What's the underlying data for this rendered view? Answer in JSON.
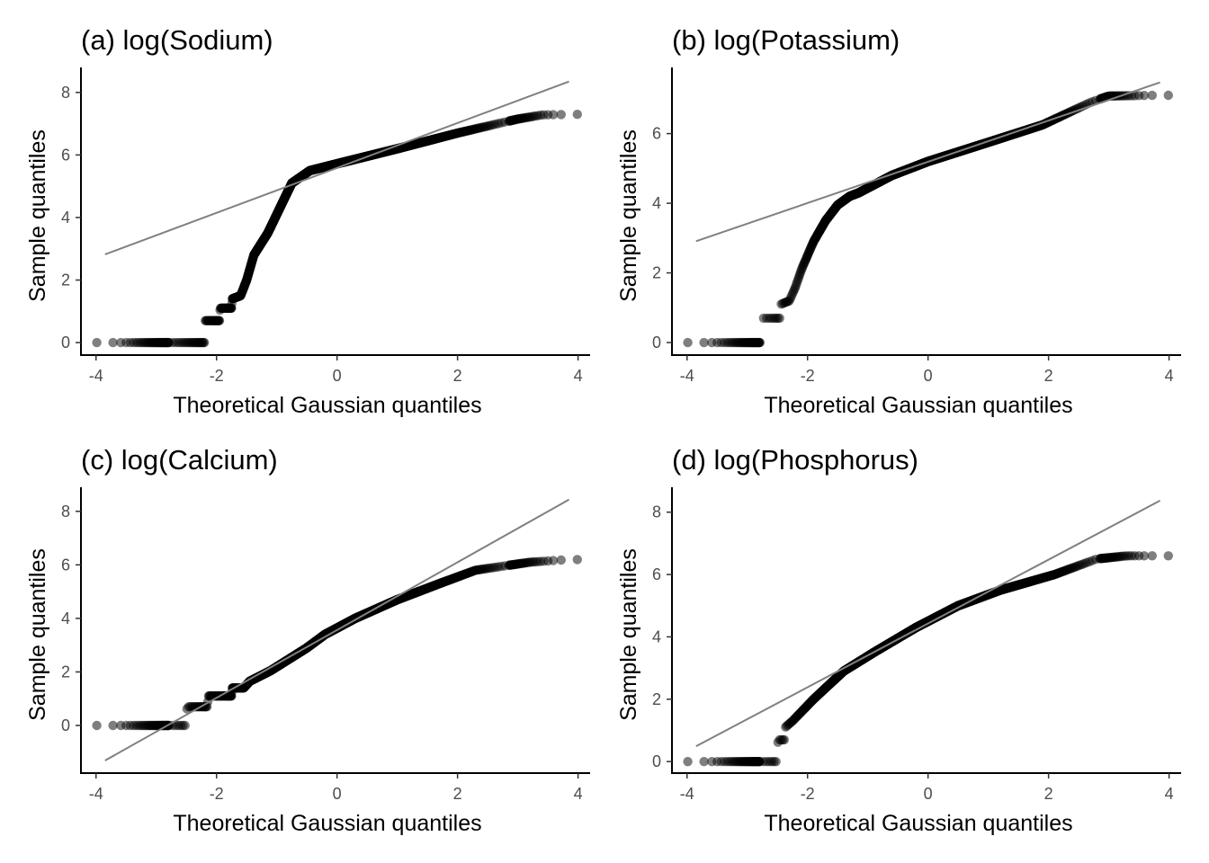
{
  "chart_data": [
    {
      "type": "scatter",
      "title": "(a) log(Sodium)",
      "xlabel": "Theoretical Gaussian quantiles",
      "ylabel": "Sample quantiles",
      "xlim": [
        -4.25,
        4.2
      ],
      "ylim": [
        -0.4,
        8.8
      ],
      "xticks": [
        -4,
        -2,
        0,
        2,
        4
      ],
      "yticks": [
        0,
        2,
        4,
        6,
        8
      ],
      "reference_line": [
        [
          -3.85,
          2.82
        ],
        [
          3.85,
          8.35
        ]
      ],
      "sample_curve": [
        [
          -3.85,
          0
        ],
        [
          -2.2,
          0
        ],
        [
          -2.19,
          0.7
        ],
        [
          -1.95,
          0.7
        ],
        [
          -1.94,
          1.1
        ],
        [
          -1.75,
          1.1
        ],
        [
          -1.74,
          1.4
        ],
        [
          -1.6,
          1.5
        ],
        [
          -1.5,
          2.0
        ],
        [
          -1.38,
          2.8
        ],
        [
          -1.15,
          3.5
        ],
        [
          -0.9,
          4.5
        ],
        [
          -0.75,
          5.1
        ],
        [
          -0.45,
          5.5
        ],
        [
          0,
          5.72
        ],
        [
          1,
          6.2
        ],
        [
          2,
          6.7
        ],
        [
          3,
          7.15
        ],
        [
          3.4,
          7.28
        ],
        [
          3.85,
          7.3
        ]
      ]
    },
    {
      "type": "scatter",
      "title": "(b) log(Potassium)",
      "xlabel": "Theoretical Gaussian quantiles",
      "ylabel": "Sample quantiles",
      "xlim": [
        -4.25,
        4.2
      ],
      "ylim": [
        -0.36,
        7.9
      ],
      "xticks": [
        -4,
        -2,
        0,
        2,
        4
      ],
      "yticks": [
        0,
        2,
        4,
        6
      ],
      "reference_line": [
        [
          -3.85,
          2.91
        ],
        [
          3.85,
          7.47
        ]
      ],
      "sample_curve": [
        [
          -3.85,
          0
        ],
        [
          -2.75,
          0
        ],
        [
          -2.74,
          0.7
        ],
        [
          -2.45,
          0.7
        ],
        [
          -2.44,
          1.1
        ],
        [
          -2.3,
          1.2
        ],
        [
          -2.2,
          1.6
        ],
        [
          -2.1,
          2.1
        ],
        [
          -1.9,
          2.9
        ],
        [
          -1.7,
          3.5
        ],
        [
          -1.5,
          3.95
        ],
        [
          -1.3,
          4.2
        ],
        [
          -1.15,
          4.3
        ],
        [
          -0.6,
          4.8
        ],
        [
          0,
          5.2
        ],
        [
          1,
          5.75
        ],
        [
          1.9,
          6.25
        ],
        [
          2.7,
          6.9
        ],
        [
          3.0,
          7.08
        ],
        [
          3.85,
          7.1
        ]
      ]
    },
    {
      "type": "scatter",
      "title": "(c) log(Calcium)",
      "xlabel": "Theoretical Gaussian quantiles",
      "ylabel": "Sample quantiles",
      "xlim": [
        -4.25,
        4.2
      ],
      "ylim": [
        -1.78,
        8.9
      ],
      "xticks": [
        -4,
        -2,
        0,
        2,
        4
      ],
      "yticks": [
        0,
        2,
        4,
        6,
        8
      ],
      "reference_line": [
        [
          -3.85,
          -1.31
        ],
        [
          3.85,
          8.44
        ]
      ],
      "sample_curve": [
        [
          -3.85,
          0
        ],
        [
          -2.5,
          0
        ],
        [
          -2.49,
          0.7
        ],
        [
          -2.15,
          0.7
        ],
        [
          -2.14,
          1.1
        ],
        [
          -1.75,
          1.1
        ],
        [
          -1.74,
          1.4
        ],
        [
          -1.55,
          1.4
        ],
        [
          -1.45,
          1.65
        ],
        [
          -1.1,
          2.05
        ],
        [
          -0.5,
          2.9
        ],
        [
          -0.2,
          3.4
        ],
        [
          0.3,
          4.0
        ],
        [
          1,
          4.7
        ],
        [
          1.7,
          5.3
        ],
        [
          2.3,
          5.8
        ],
        [
          3.2,
          6.1
        ],
        [
          3.85,
          6.2
        ]
      ]
    },
    {
      "type": "scatter",
      "title": "(d) log(Phosphorus)",
      "xlabel": "Theoretical Gaussian quantiles",
      "ylabel": "Sample quantiles",
      "xlim": [
        -4.25,
        4.2
      ],
      "ylim": [
        -0.37,
        8.8
      ],
      "xticks": [
        -4,
        -2,
        0,
        2,
        4
      ],
      "yticks": [
        0,
        2,
        4,
        6,
        8
      ],
      "reference_line": [
        [
          -3.85,
          0.49
        ],
        [
          3.85,
          8.37
        ]
      ],
      "sample_curve": [
        [
          -3.85,
          0
        ],
        [
          -2.5,
          0
        ],
        [
          -2.49,
          0.7
        ],
        [
          -2.38,
          0.7
        ],
        [
          -2.37,
          1.1
        ],
        [
          -2.25,
          1.3
        ],
        [
          -1.9,
          2.0
        ],
        [
          -1.4,
          2.9
        ],
        [
          -0.9,
          3.5
        ],
        [
          -0.2,
          4.3
        ],
        [
          0.5,
          5.0
        ],
        [
          1.2,
          5.5
        ],
        [
          2.1,
          6.0
        ],
        [
          2.8,
          6.5
        ],
        [
          3.3,
          6.6
        ],
        [
          3.85,
          6.6
        ]
      ]
    }
  ]
}
